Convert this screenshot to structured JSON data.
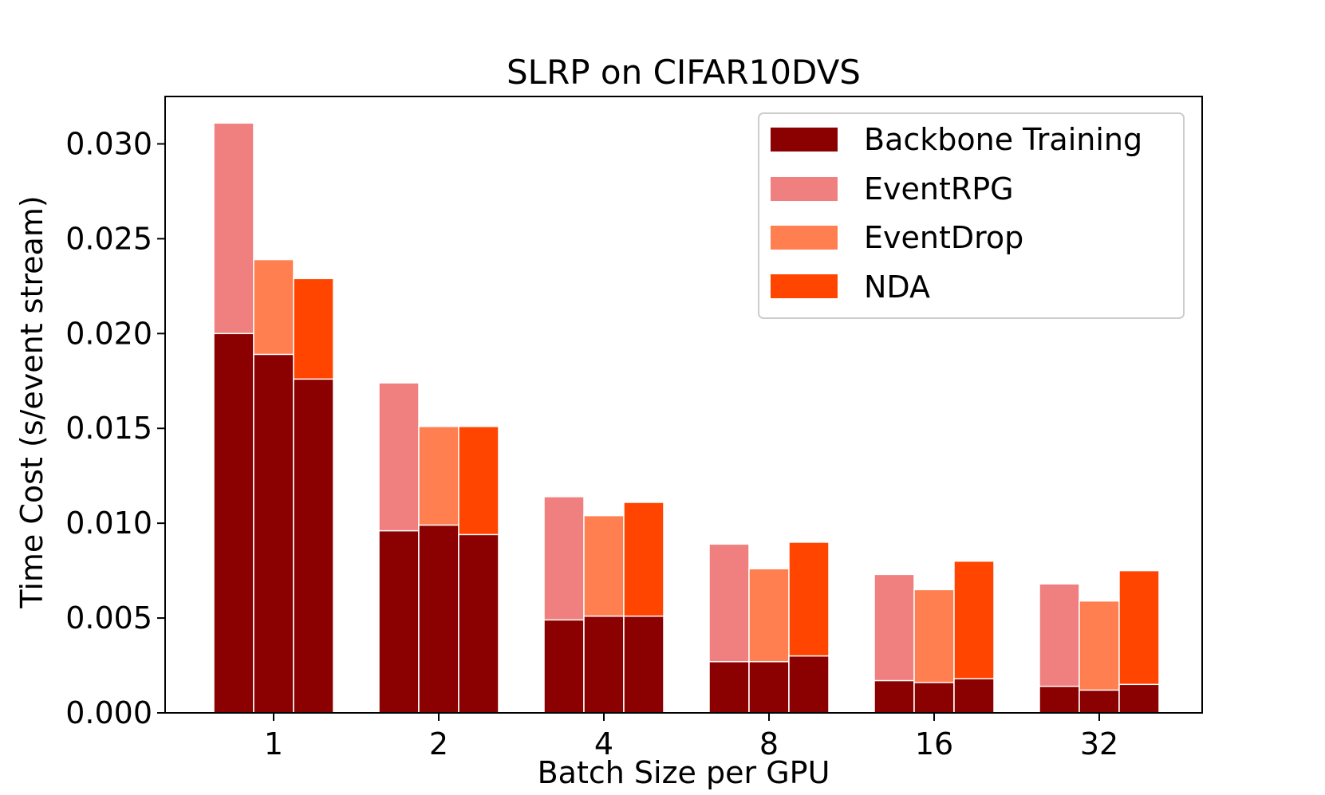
{
  "chart_data": {
    "type": "bar",
    "title": "SLRP on CIFAR10DVS",
    "xlabel": "Batch Size per GPU",
    "ylabel": "Time Cost (s/event stream)",
    "categories": [
      "1",
      "2",
      "4",
      "8",
      "16",
      "32"
    ],
    "ylim": [
      0,
      0.0325
    ],
    "yticks": [
      0.0,
      0.005,
      0.01,
      0.015,
      0.02,
      0.025,
      0.03
    ],
    "ytick_labels": [
      "0.000",
      "0.005",
      "0.010",
      "0.015",
      "0.020",
      "0.025",
      "0.030"
    ],
    "legend_position": "top-right",
    "series": [
      {
        "name": "EventRPG",
        "color": "#F08080",
        "total": [
          0.0311,
          0.0174,
          0.0114,
          0.0089,
          0.0073,
          0.0068
        ],
        "backbone": [
          0.02,
          0.0096,
          0.0049,
          0.0027,
          0.0017,
          0.0014
        ]
      },
      {
        "name": "EventDrop",
        "color": "#FF7F50",
        "total": [
          0.0239,
          0.0151,
          0.0104,
          0.0076,
          0.0065,
          0.0059
        ],
        "backbone": [
          0.0189,
          0.0099,
          0.0051,
          0.0027,
          0.0016,
          0.0012
        ]
      },
      {
        "name": "NDA",
        "color": "#FF4500",
        "total": [
          0.0229,
          0.0151,
          0.0111,
          0.009,
          0.008,
          0.0075
        ],
        "backbone": [
          0.0176,
          0.0094,
          0.0051,
          0.003,
          0.0018,
          0.0015
        ]
      }
    ],
    "backbone_series": {
      "name": "Backbone Training",
      "color": "#8B0000"
    },
    "legend": [
      "Backbone Training",
      "EventRPG",
      "EventDrop",
      "NDA"
    ]
  }
}
